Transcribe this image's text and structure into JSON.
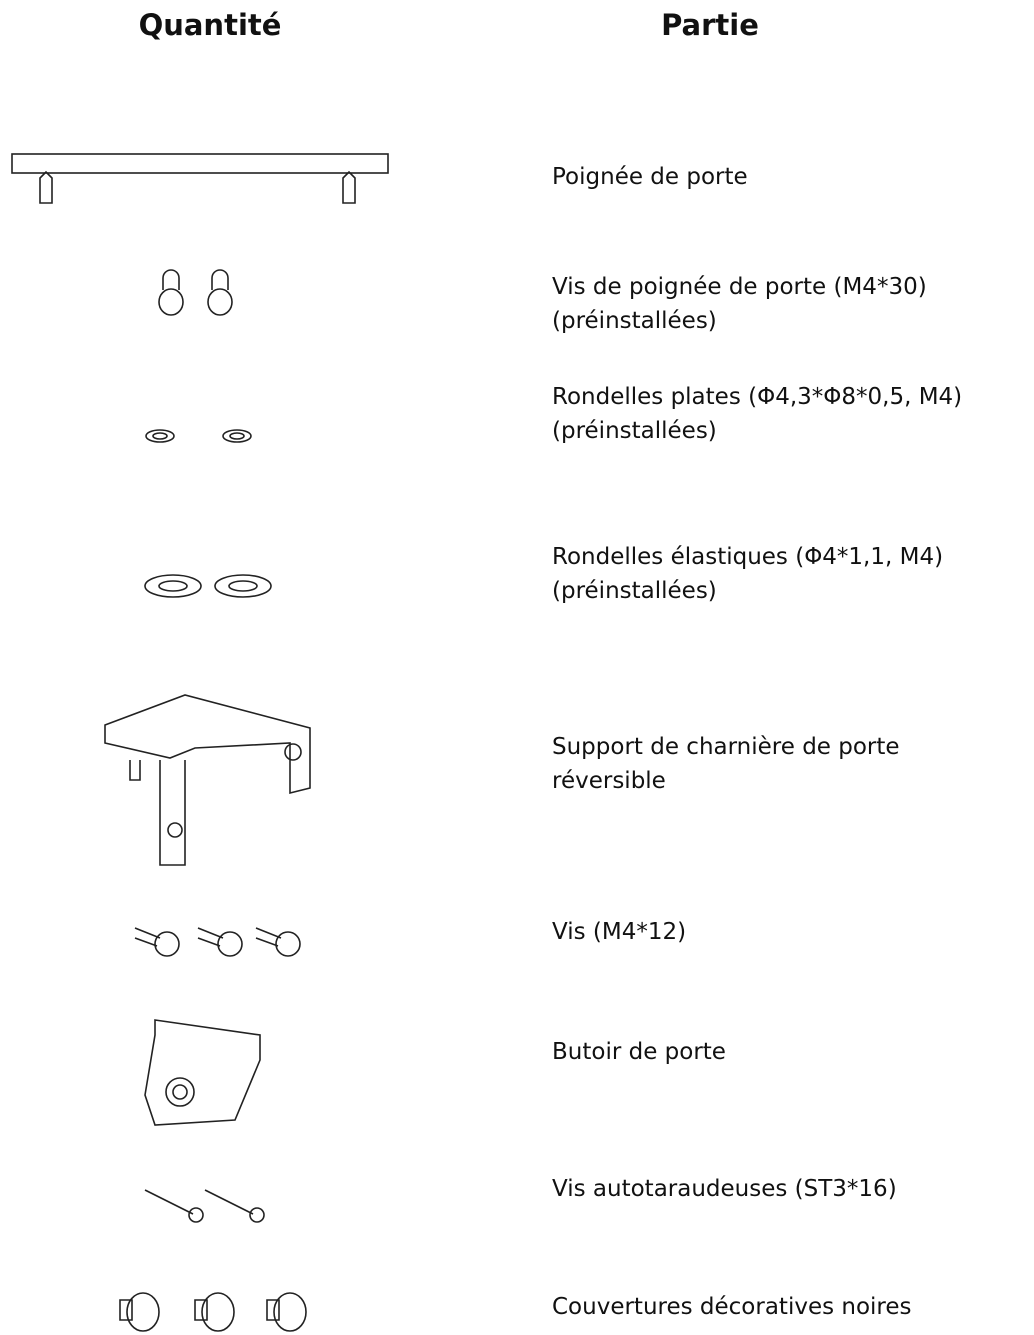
{
  "header": {
    "quantity": "Quantité",
    "part": "Partie"
  },
  "rows": [
    {
      "lines": [
        "Poignée de porte"
      ]
    },
    {
      "lines": [
        "Vis de poignée de porte (M4*30)",
        "(préinstallées)"
      ]
    },
    {
      "lines": [
        "Rondelles plates (Φ4,3*Φ8*0,5, M4)",
        "(préinstallées)"
      ]
    },
    {
      "lines": [
        "Rondelles élastiques (Φ4*1,1, M4)",
        "(préinstallées)"
      ]
    },
    {
      "lines": [
        "Support de charnière de porte",
        "réversible"
      ]
    },
    {
      "lines": [
        "Vis (M4*12)"
      ]
    },
    {
      "lines": [
        "Butoir de porte"
      ]
    },
    {
      "lines": [
        "Vis autotaraudeuses (ST3*16)"
      ]
    },
    {
      "lines": [
        "Couvertures décoratives noires"
      ]
    }
  ]
}
